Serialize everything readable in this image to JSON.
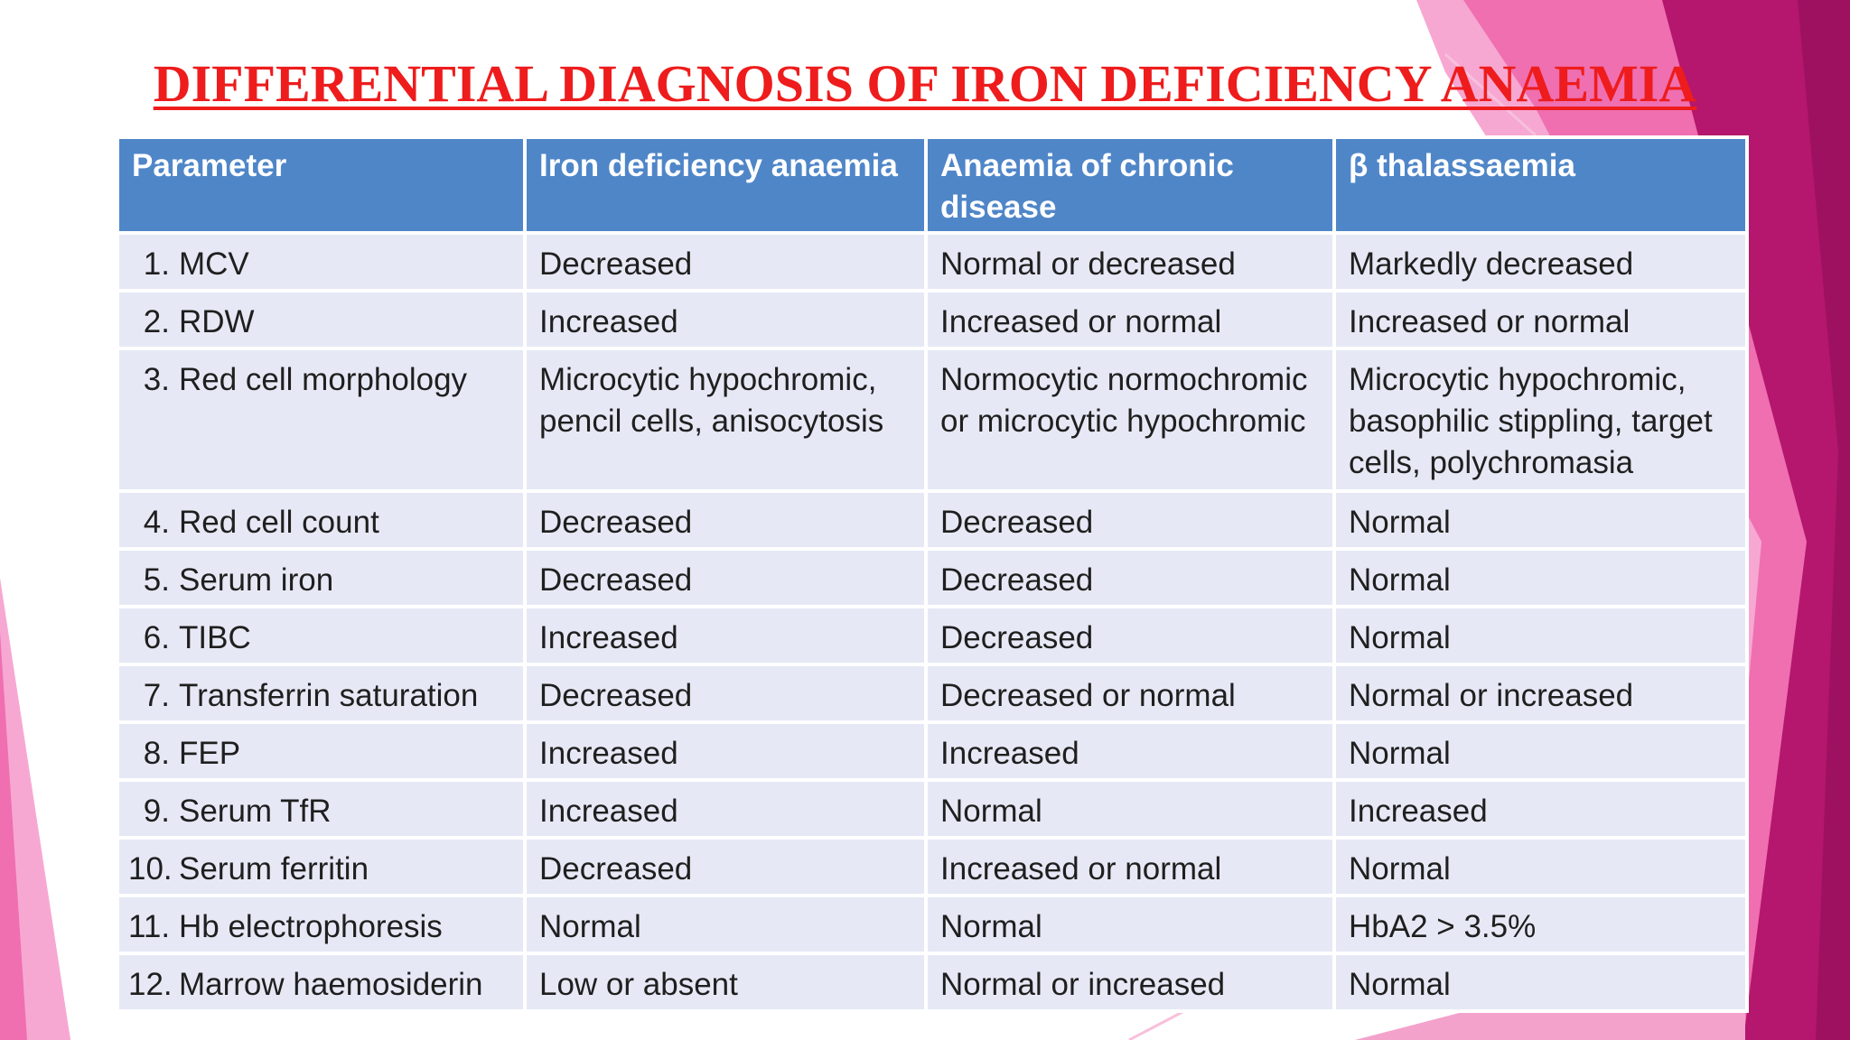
{
  "title": "DIFFERENTIAL DIAGNOSIS OF IRON DEFICIENCY ANAEMIA",
  "colors": {
    "title": "#ee1c1c",
    "header_bg": "#4f86c8",
    "header_text": "#ffffff",
    "row_bg": "#e6e9f5",
    "accent_pink": "#e4368e",
    "accent_magenta": "#b4176d"
  },
  "table": {
    "headers": [
      "Parameter",
      "Iron deficiency anaemia",
      "Anaemia of chronic disease",
      "β thalassaemia"
    ],
    "rows": [
      {
        "num": "1.",
        "parameter": "MCV",
        "ida": "Decreased",
        "acd": "Normal or decreased",
        "thal": "Markedly decreased"
      },
      {
        "num": "2.",
        "parameter": "RDW",
        "ida": "Increased",
        "acd": "Increased or normal",
        "thal": "Increased or normal"
      },
      {
        "num": "3.",
        "parameter": "Red cell morphology",
        "ida": "Microcytic hypochromic, pencil cells, anisocytosis",
        "acd": "Normocytic normochromic or microcytic hypochromic",
        "thal": "Microcytic hypochromic, basophilic stippling, target cells, polychromasia"
      },
      {
        "num": "4.",
        "parameter": "Red cell count",
        "ida": "Decreased",
        "acd": "Decreased",
        "thal": "Normal"
      },
      {
        "num": "5.",
        "parameter": "Serum iron",
        "ida": "Decreased",
        "acd": "Decreased",
        "thal": "Normal"
      },
      {
        "num": "6.",
        "parameter": "TIBC",
        "ida": "Increased",
        "acd": "Decreased",
        "thal": "Normal"
      },
      {
        "num": "7.",
        "parameter": "Transferrin saturation",
        "ida": "Decreased",
        "acd": "Decreased or normal",
        "thal": "Normal or increased"
      },
      {
        "num": "8.",
        "parameter": "FEP",
        "ida": "Increased",
        "acd": "Increased",
        "thal": "Normal"
      },
      {
        "num": "9.",
        "parameter": "Serum TfR",
        "ida": "Increased",
        "acd": "Normal",
        "thal": "Increased"
      },
      {
        "num": "10.",
        "parameter": "Serum ferritin",
        "ida": "Decreased",
        "acd": "Increased or normal",
        "thal": "Normal"
      },
      {
        "num": "11.",
        "parameter": "Hb electrophoresis",
        "ida": "Normal",
        "acd": "Normal",
        "thal": "HbA2 > 3.5%"
      },
      {
        "num": "12.",
        "parameter": "Marrow haemosiderin",
        "ida": "Low or absent",
        "acd": "Normal or increased",
        "thal": "Normal"
      }
    ]
  }
}
